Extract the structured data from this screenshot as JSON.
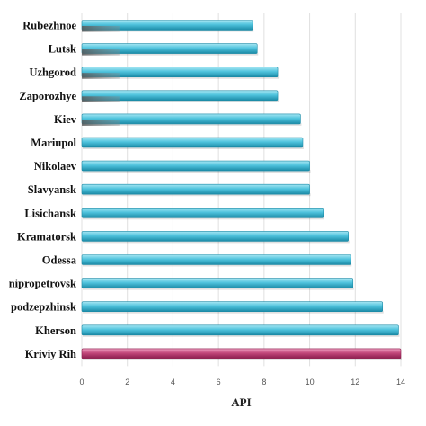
{
  "chart_data": {
    "type": "bar",
    "orientation": "horizontal",
    "categories": [
      "Rubezhnoe",
      "Lutsk",
      "Uzhgorod",
      "Zaporozhye",
      "Kiev",
      "Mariupol",
      "Nikolaev",
      "Slavyansk",
      "Lisichansk",
      "Kramatorsk",
      "Odessa",
      "nipropetrovsk",
      "podzepzhinsk",
      "Kherson",
      "Kriviy Rih"
    ],
    "values": [
      7.5,
      7.7,
      8.6,
      8.6,
      9.6,
      9.7,
      10.0,
      10.0,
      10.6,
      11.7,
      11.8,
      11.9,
      13.2,
      13.9,
      14.0
    ],
    "highlight_category": "Kriviy Rih",
    "title": "",
    "xlabel": "API",
    "ylabel": "",
    "xlim": [
      0,
      14
    ],
    "xticks": [
      0,
      2,
      4,
      6,
      8,
      10,
      12,
      14
    ],
    "grid": "vertical",
    "legend": "none",
    "colors": {
      "bar": "#4fc3dd",
      "bar_light": "#a6e6f3",
      "bar_dark": "#1b8aa6",
      "highlight": "#c2477a",
      "highlight_light": "#ee9ec0",
      "highlight_dark": "#8c1e4e",
      "grid": "#e0e0e0"
    }
  }
}
